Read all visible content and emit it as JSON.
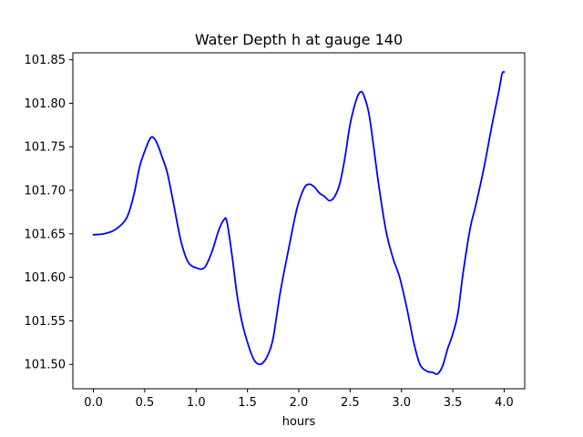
{
  "chart_data": {
    "type": "line",
    "title": "Water Depth h at gauge 140",
    "xlabel": "hours",
    "ylabel": "",
    "xlim": [
      -0.2,
      4.2
    ],
    "ylim": [
      101.472,
      101.858
    ],
    "x_ticks": [
      0.0,
      0.5,
      1.0,
      1.5,
      2.0,
      2.5,
      3.0,
      3.5,
      4.0
    ],
    "x_tick_labels": [
      "0.0",
      "0.5",
      "1.0",
      "1.5",
      "2.0",
      "2.5",
      "3.0",
      "3.5",
      "4.0"
    ],
    "y_ticks": [
      101.5,
      101.55,
      101.6,
      101.65,
      101.7,
      101.75,
      101.8,
      101.85
    ],
    "y_tick_labels": [
      "101.50",
      "101.55",
      "101.60",
      "101.65",
      "101.70",
      "101.75",
      "101.80",
      "101.85"
    ],
    "grid": false,
    "legend": "none",
    "series": [
      {
        "color": "#0000ff",
        "x": [
          0.0,
          0.1,
          0.2,
          0.3,
          0.35,
          0.4,
          0.45,
          0.5,
          0.55,
          0.58,
          0.62,
          0.67,
          0.72,
          0.78,
          0.85,
          0.92,
          1.0,
          1.08,
          1.15,
          1.22,
          1.27,
          1.3,
          1.35,
          1.4,
          1.45,
          1.52,
          1.57,
          1.62,
          1.66,
          1.7,
          1.75,
          1.82,
          1.9,
          1.98,
          2.05,
          2.1,
          2.15,
          2.2,
          2.25,
          2.3,
          2.35,
          2.4,
          2.45,
          2.5,
          2.56,
          2.6,
          2.63,
          2.68,
          2.72,
          2.78,
          2.85,
          2.92,
          2.98,
          3.05,
          3.12,
          3.18,
          3.25,
          3.3,
          3.35,
          3.4,
          3.45,
          3.5,
          3.55,
          3.6,
          3.67,
          3.72,
          3.8,
          3.88,
          3.95,
          3.98,
          4.0
        ],
        "y": [
          101.649,
          101.65,
          101.654,
          101.664,
          101.676,
          101.698,
          101.727,
          101.745,
          101.759,
          101.761,
          101.754,
          101.738,
          101.72,
          101.685,
          101.643,
          101.618,
          101.611,
          101.611,
          101.628,
          101.654,
          101.666,
          101.664,
          101.625,
          101.579,
          101.547,
          101.518,
          101.504,
          101.5,
          101.503,
          101.511,
          101.53,
          101.583,
          101.632,
          101.678,
          101.702,
          101.707,
          101.704,
          101.697,
          101.693,
          101.688,
          101.693,
          101.708,
          101.738,
          101.776,
          101.804,
          101.813,
          101.81,
          101.79,
          101.758,
          101.705,
          101.653,
          101.621,
          101.601,
          101.566,
          101.525,
          101.5,
          101.492,
          101.491,
          101.489,
          101.498,
          101.518,
          101.535,
          101.559,
          101.605,
          101.657,
          101.681,
          101.724,
          101.774,
          101.815,
          101.834,
          101.836
        ]
      }
    ]
  }
}
